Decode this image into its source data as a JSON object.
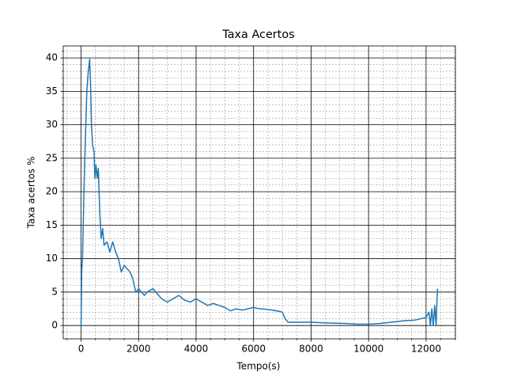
{
  "chart_data": {
    "type": "line",
    "title": "Taxa Acertos",
    "x_label": "Tempo(s)",
    "y_label": "Taxa acertos %",
    "x": [
      0,
      20,
      50,
      100,
      150,
      200,
      250,
      300,
      330,
      360,
      400,
      450,
      480,
      520,
      560,
      600,
      650,
      700,
      750,
      800,
      900,
      1000,
      1100,
      1200,
      1300,
      1400,
      1500,
      1600,
      1700,
      1800,
      1900,
      2000,
      2100,
      2200,
      2300,
      2500,
      2600,
      2800,
      3000,
      3200,
      3400,
      3600,
      3800,
      4000,
      4200,
      4400,
      4600,
      4800,
      5000,
      5200,
      5400,
      5600,
      5800,
      6000,
      6200,
      6500,
      6800,
      7000,
      7100,
      7200,
      7600,
      8000,
      8400,
      8800,
      9200,
      9600,
      10000,
      10400,
      10800,
      11200,
      11600,
      12000,
      12100,
      12150,
      12200,
      12250,
      12300,
      12350,
      12380,
      12400
    ],
    "series": [
      {
        "name": "Taxa acertos",
        "color": "#1f77b4",
        "values": [
          0,
          8,
          10,
          20,
          28,
          35,
          38,
          39.8,
          36,
          30,
          27,
          26,
          22,
          24,
          22,
          23.5,
          17,
          13,
          14.5,
          12,
          12.5,
          11,
          12.5,
          11,
          10,
          8,
          9,
          8.5,
          8,
          7,
          5,
          5.5,
          5,
          4.5,
          5,
          5.5,
          5,
          4,
          3.5,
          4,
          4.5,
          3.8,
          3.5,
          4,
          3.5,
          3,
          3.3,
          3,
          2.7,
          2.2,
          2.5,
          2.3,
          2.5,
          2.7,
          2.5,
          2.4,
          2.2,
          2,
          1,
          0.5,
          0.5,
          0.5,
          0.4,
          0.35,
          0.3,
          0.2,
          0.2,
          0.3,
          0.5,
          0.7,
          0.8,
          1.2,
          2,
          0,
          2.5,
          0,
          3,
          0,
          4,
          5.5
        ]
      }
    ],
    "xlim": [
      -620,
      13020
    ],
    "ylim": [
      -1.99,
      41.79
    ],
    "xticks": [
      0,
      2000,
      4000,
      6000,
      8000,
      10000,
      12000
    ],
    "yticks": [
      0,
      5,
      10,
      15,
      20,
      25,
      30,
      35,
      40
    ],
    "grid": true,
    "minor_grid": true
  }
}
